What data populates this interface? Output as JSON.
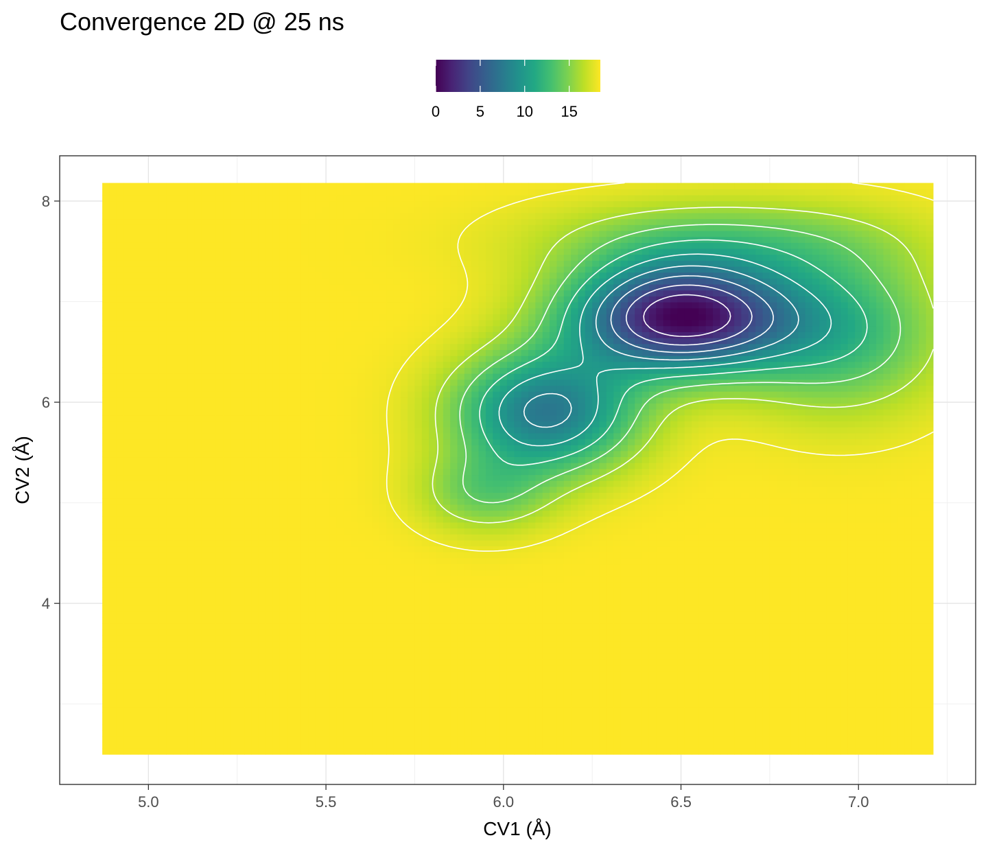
{
  "chart_data": {
    "type": "heatmap",
    "title": "Convergence 2D @ 25 ns",
    "xlabel": "CV1 (Å)",
    "ylabel": "CV2 (Å)",
    "xlim": [
      4.75,
      7.33
    ],
    "ylim": [
      2.2,
      8.45
    ],
    "x_ticks": [
      {
        "value": 5.0,
        "label": "5.0"
      },
      {
        "value": 5.5,
        "label": "5.5"
      },
      {
        "value": 6.0,
        "label": "6.0"
      },
      {
        "value": 6.5,
        "label": "6.5"
      },
      {
        "value": 7.0,
        "label": "7.0"
      }
    ],
    "y_ticks": [
      {
        "value": 4,
        "label": "4"
      },
      {
        "value": 6,
        "label": "6"
      },
      {
        "value": 8,
        "label": "8"
      }
    ],
    "data_extent": {
      "x": [
        4.87,
        7.21
      ],
      "y": [
        2.5,
        8.18
      ]
    },
    "fill_range": [
      0,
      18.5
    ],
    "fill_palette": "viridis",
    "colorbar": {
      "ticks": [
        {
          "value": 0,
          "label": "0"
        },
        {
          "value": 5,
          "label": "5"
        },
        {
          "value": 10,
          "label": "10"
        },
        {
          "value": 15,
          "label": "15"
        }
      ],
      "position": "top"
    },
    "contour_levels": [
      2,
      4,
      6,
      8,
      10,
      12,
      14,
      16,
      18
    ],
    "contour_color": "#ffffff",
    "grid": true,
    "minimum": {
      "x": 6.5,
      "y": 6.85,
      "value": 0
    },
    "wells": [
      {
        "x": 6.5,
        "y": 6.85,
        "sx": 0.215,
        "sy": 0.38,
        "depth": 18
      },
      {
        "x": 6.12,
        "y": 5.9,
        "sx": 0.18,
        "sy": 0.42,
        "depth": 11
      },
      {
        "x": 5.95,
        "y": 5.1,
        "sx": 0.13,
        "sy": 0.28,
        "depth": 4
      },
      {
        "x": 6.95,
        "y": 6.7,
        "sx": 0.2,
        "sy": 0.55,
        "depth": 6
      },
      {
        "x": 6.6,
        "y": 7.6,
        "sx": 0.35,
        "sy": 0.3,
        "depth": 4
      }
    ]
  }
}
